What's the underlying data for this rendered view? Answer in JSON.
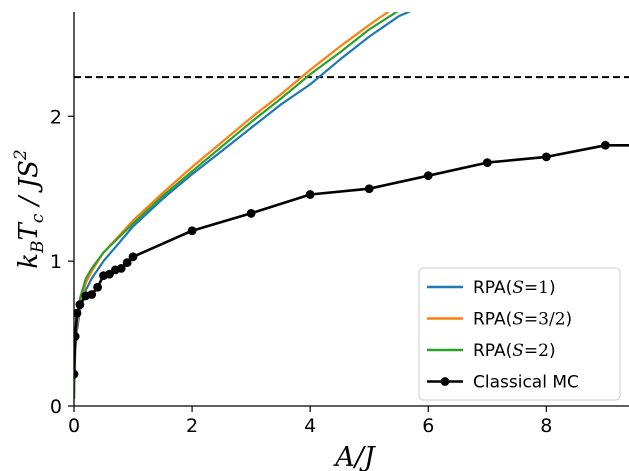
{
  "chart_data": {
    "type": "line",
    "xlabel": "A/J",
    "ylabel": "k_B T_c / J S^2",
    "xlim": [
      0,
      9.4
    ],
    "ylim": [
      0,
      2.72
    ],
    "xticks": [
      0,
      2,
      4,
      6,
      8
    ],
    "yticks": [
      0,
      1,
      2
    ],
    "xtick_labels": [
      "0",
      "2",
      "4",
      "6",
      "8"
    ],
    "ytick_labels": [
      "0",
      "1",
      "2"
    ],
    "grid": false,
    "legend_position": "lower-right",
    "reference_line": {
      "y": 2.27,
      "style": "dashed",
      "color": "#000000"
    },
    "series": [
      {
        "name": "RPA(S=1)",
        "legend_prefix": "RPA(",
        "legend_var": "S",
        "legend_value": "=1",
        "legend_suffix": ")",
        "color": "#1f77b4",
        "marker": "none",
        "x": [
          0,
          0.02,
          0.05,
          0.1,
          0.2,
          0.3,
          0.5,
          0.75,
          1.0,
          1.5,
          2.0,
          2.5,
          3.0,
          3.5,
          4.0,
          4.5,
          5.0,
          5.5,
          5.72
        ],
        "y": [
          0.05,
          0.38,
          0.52,
          0.66,
          0.8,
          0.88,
          1.0,
          1.12,
          1.24,
          1.43,
          1.6,
          1.76,
          1.92,
          2.08,
          2.22,
          2.39,
          2.55,
          2.69,
          2.73
        ]
      },
      {
        "name": "RPA(S=3/2)",
        "legend_prefix": "RPA(",
        "legend_var": "S",
        "legend_value": "=3/2",
        "legend_suffix": ")",
        "color": "#ff7f0e",
        "marker": "none",
        "x": [
          0,
          0.02,
          0.05,
          0.1,
          0.2,
          0.3,
          0.5,
          0.75,
          1.0,
          1.5,
          2.0,
          2.5,
          3.0,
          3.5,
          4.0,
          4.5,
          5.0,
          5.35
        ],
        "y": [
          0.05,
          0.42,
          0.56,
          0.7,
          0.85,
          0.93,
          1.06,
          1.17,
          1.28,
          1.47,
          1.65,
          1.82,
          1.99,
          2.15,
          2.32,
          2.48,
          2.63,
          2.73
        ]
      },
      {
        "name": "RPA(S=2)",
        "legend_prefix": "RPA(",
        "legend_var": "S",
        "legend_value": "=2",
        "legend_suffix": ")",
        "color": "#2ca02c",
        "marker": "none",
        "x": [
          0,
          0.02,
          0.05,
          0.1,
          0.2,
          0.3,
          0.5,
          0.75,
          1.0,
          1.5,
          2.0,
          2.5,
          3.0,
          3.5,
          4.0,
          4.5,
          5.0,
          5.5
        ],
        "y": [
          0.05,
          0.45,
          0.6,
          0.74,
          0.88,
          0.95,
          1.06,
          1.16,
          1.26,
          1.45,
          1.62,
          1.79,
          1.96,
          2.12,
          2.29,
          2.44,
          2.6,
          2.73
        ]
      },
      {
        "name": "Classical MC",
        "legend_prefix": "Classical MC",
        "legend_var": "",
        "legend_value": "",
        "legend_suffix": "",
        "color": "#000000",
        "marker": "circle",
        "x": [
          0,
          0.02,
          0.05,
          0.1,
          0.2,
          0.3,
          0.4,
          0.5,
          0.6,
          0.7,
          0.8,
          0.9,
          1.0,
          2.0,
          3.0,
          4.0,
          5.0,
          6.0,
          7.0,
          8.0,
          9.0,
          9.4
        ],
        "y": [
          0.22,
          0.48,
          0.64,
          0.7,
          0.76,
          0.77,
          0.82,
          0.9,
          0.91,
          0.94,
          0.95,
          0.99,
          1.03,
          1.21,
          1.33,
          1.46,
          1.5,
          1.59,
          1.68,
          1.72,
          1.8,
          1.8
        ]
      }
    ]
  }
}
